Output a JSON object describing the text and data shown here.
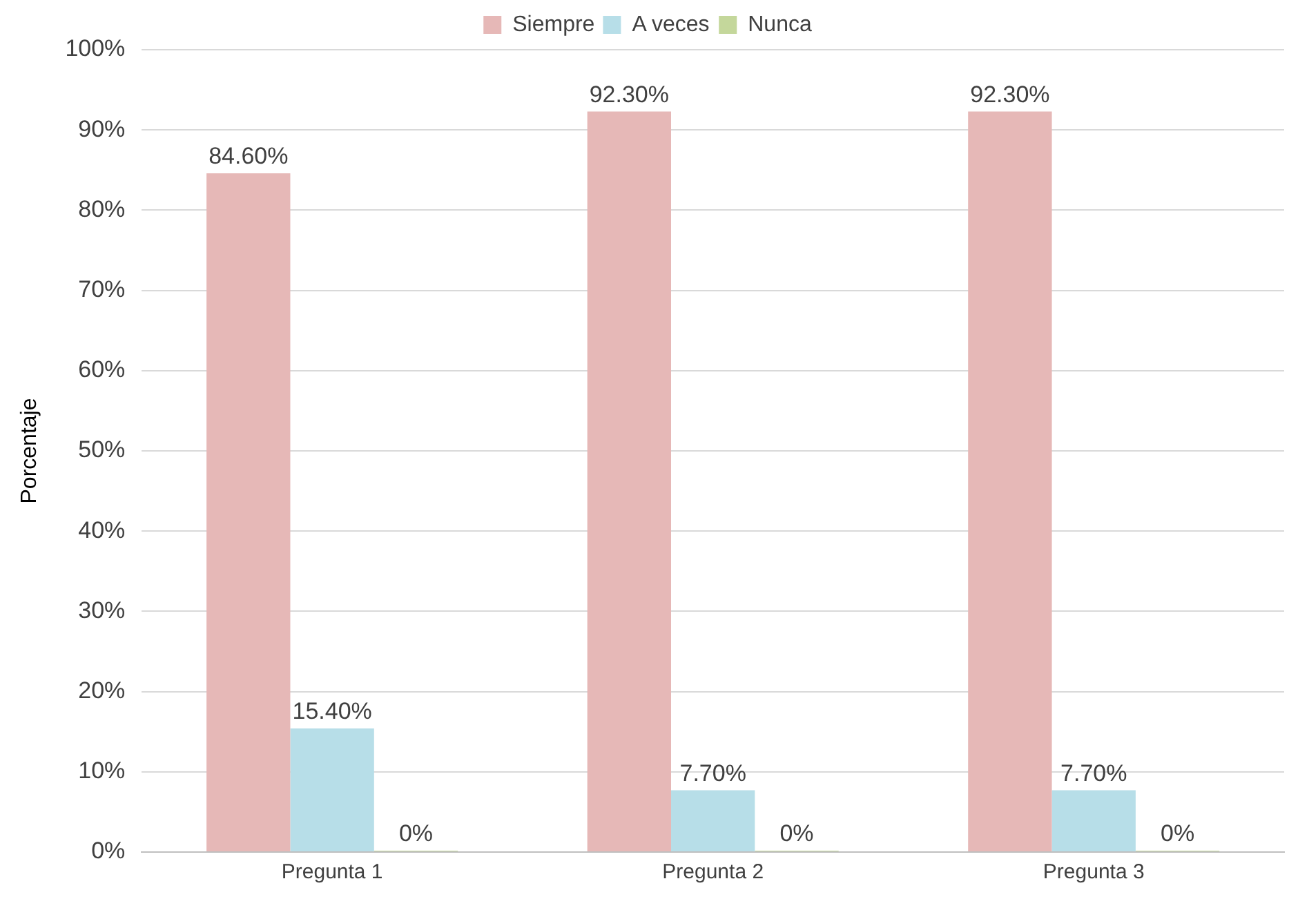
{
  "chart_data": {
    "type": "bar",
    "ylabel": "Porcentaje",
    "categories": [
      "Pregunta 1",
      "Pregunta 2",
      "Pregunta 3"
    ],
    "series": [
      {
        "name": "Siempre",
        "color": "#e6b8b7",
        "values": [
          84.6,
          92.3,
          92.3
        ],
        "value_labels": [
          "84.60%",
          "92.30%",
          "92.30%"
        ]
      },
      {
        "name": "A veces",
        "color": "#b7dee8",
        "values": [
          15.4,
          7.7,
          7.7
        ],
        "value_labels": [
          "15.40%",
          "7.70%",
          "7.70%"
        ]
      },
      {
        "name": "Nunca",
        "color": "#c4d79b",
        "values": [
          0,
          0,
          0
        ],
        "value_labels": [
          "0%",
          "0%",
          "0%"
        ]
      }
    ],
    "ylim": [
      0,
      100
    ],
    "yticks": [
      {
        "value": 0,
        "label": "0%"
      },
      {
        "value": 10,
        "label": "10%"
      },
      {
        "value": 20,
        "label": "20%"
      },
      {
        "value": 30,
        "label": "30%"
      },
      {
        "value": 40,
        "label": "40%"
      },
      {
        "value": 50,
        "label": "50%"
      },
      {
        "value": 60,
        "label": "60%"
      },
      {
        "value": 70,
        "label": "70%"
      },
      {
        "value": 80,
        "label": "80%"
      },
      {
        "value": 90,
        "label": "90%"
      },
      {
        "value": 100,
        "label": "100%"
      }
    ],
    "grid": "y",
    "legend": "top"
  }
}
